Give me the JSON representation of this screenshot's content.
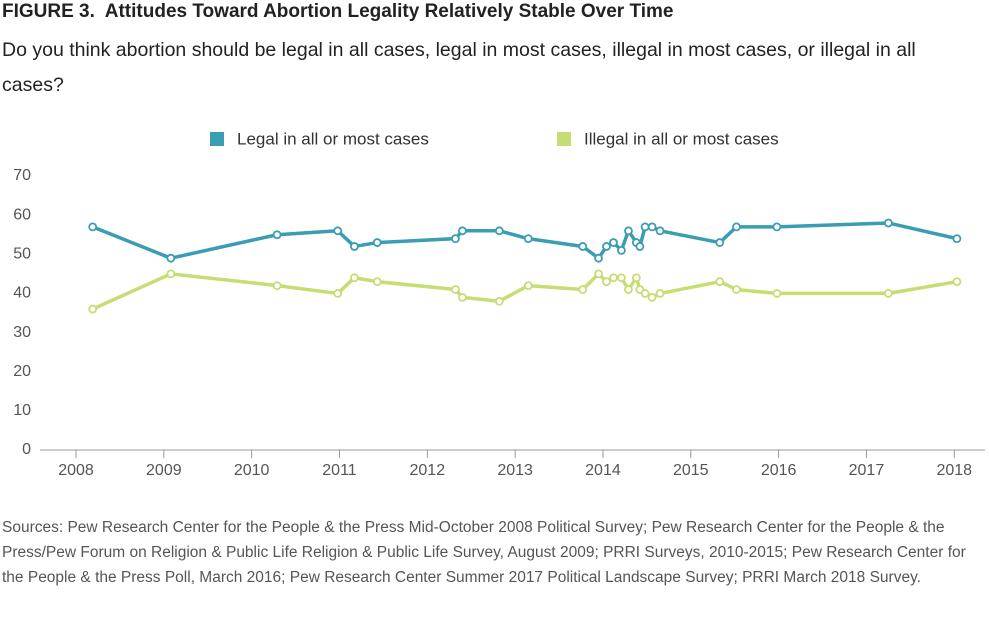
{
  "chart_data": {
    "type": "line",
    "title": "FIGURE 3.  Attitudes Toward Abortion Legality Relatively Stable Over Time",
    "subtitle": "Do you think abortion should be legal in all cases, legal in most cases, illegal in most cases, or illegal in all cases?",
    "x": [
      2008.19,
      2009.08,
      2010.29,
      2010.98,
      2011.17,
      2011.43,
      2012.32,
      2012.4,
      2012.82,
      2013.15,
      2013.77,
      2013.95,
      2014.04,
      2014.12,
      2014.21,
      2014.29,
      2014.38,
      2014.42,
      2014.48,
      2014.56,
      2014.65,
      2015.33,
      2015.52,
      2015.98,
      2017.25,
      2018.03
    ],
    "series": [
      {
        "name": "Legal in all or most cases",
        "color": "#3a9db3",
        "values": [
          57,
          49,
          55,
          56,
          52,
          53,
          54,
          56,
          56,
          54,
          52,
          49,
          52,
          53,
          51,
          56,
          53,
          52,
          57,
          57,
          56,
          53,
          57,
          57,
          58,
          54
        ]
      },
      {
        "name": "Illegal in all or most cases",
        "color": "#c6dd73",
        "values": [
          36,
          45,
          42,
          40,
          44,
          43,
          41,
          39,
          38,
          42,
          41,
          45,
          43,
          44,
          44,
          41,
          44,
          41,
          40,
          39,
          40,
          43,
          41,
          40,
          40,
          43
        ]
      }
    ],
    "xlim": [
      2007.59,
      2018.35
    ],
    "xticks": [
      2008,
      2009,
      2010,
      2011,
      2012,
      2013,
      2014,
      2015,
      2016,
      2017,
      2018
    ],
    "ylim": [
      0,
      70
    ],
    "yticks": [
      0,
      10,
      20,
      30,
      40,
      50,
      60,
      70
    ],
    "grid": false,
    "legend": "top",
    "source": "Sources: Pew Research Center for the People & the Press Mid-October 2008 Political Survey; Pew Research Center for the People & the Press/Pew Forum on Religion & Public Life Religion & Public Life Survey, August 2009; PRRI Surveys, 2010-2015; Pew Research Center for the People & the Press Poll, March 2016; Pew Research Center Summer 2017 Political Landscape Survey; PRRI March 2018 Survey."
  }
}
